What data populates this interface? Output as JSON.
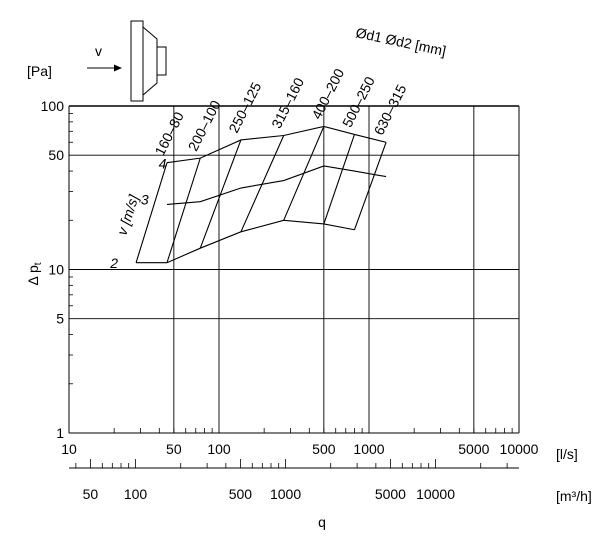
{
  "chart_data": {
    "type": "line",
    "title": "",
    "ylabel": "Δ p",
    "ylabel_sub": "t",
    "yunit": "[Pa]",
    "xlabel": "q",
    "xunit_primary": "[l/s]",
    "xunit_secondary": "[m³/h]",
    "x_scale": "log",
    "y_scale": "log",
    "xlim": [
      10,
      10000
    ],
    "ylim": [
      1,
      100
    ],
    "grid": true,
    "y_ticks": [
      "1",
      "5",
      "10",
      "50",
      "100"
    ],
    "x_ticks_primary": [
      "10",
      "50",
      "100",
      "500",
      "1000",
      "5000",
      "10000"
    ],
    "x_ticks_secondary": [
      "50",
      "100",
      "500",
      "1000",
      "5000",
      "10000"
    ],
    "diameter_header": "Ød1 Ød2 [mm]",
    "velocity_axis_label": "v [m/s]",
    "velocity_labels": [
      "2",
      "3",
      "4"
    ],
    "inflow_label": "v",
    "series": [
      {
        "name": "160–80",
        "x": [
          28,
          45
        ],
        "y": [
          11,
          45
        ]
      },
      {
        "name": "200–100",
        "x": [
          45,
          75
        ],
        "y": [
          11,
          48
        ]
      },
      {
        "name": "250–125",
        "x": [
          75,
          140
        ],
        "y": [
          13.5,
          62
        ]
      },
      {
        "name": "315–160",
        "x": [
          140,
          270
        ],
        "y": [
          17,
          66
        ]
      },
      {
        "name": "400–200",
        "x": [
          270,
          500
        ],
        "y": [
          20,
          75
        ]
      },
      {
        "name": "500–250",
        "x": [
          500,
          800
        ],
        "y": [
          19,
          67
        ]
      },
      {
        "name": "630–315",
        "x": [
          800,
          1300
        ],
        "y": [
          17.5,
          60
        ]
      }
    ],
    "velocity_lines": [
      {
        "name": "2",
        "x": [
          28,
          45,
          75,
          140,
          270,
          500,
          800
        ],
        "y": [
          11,
          11,
          13.5,
          17,
          20,
          19,
          17.5
        ]
      },
      {
        "name": "3",
        "x": [
          45,
          75,
          140,
          270,
          500,
          800,
          1300
        ],
        "y": [
          25,
          26,
          31.5,
          35,
          43,
          40,
          37
        ]
      },
      {
        "name": "4",
        "x": [
          45,
          75,
          140,
          270,
          500,
          800,
          1300
        ],
        "y": [
          45,
          48,
          62,
          66,
          75,
          67,
          60
        ]
      }
    ]
  }
}
